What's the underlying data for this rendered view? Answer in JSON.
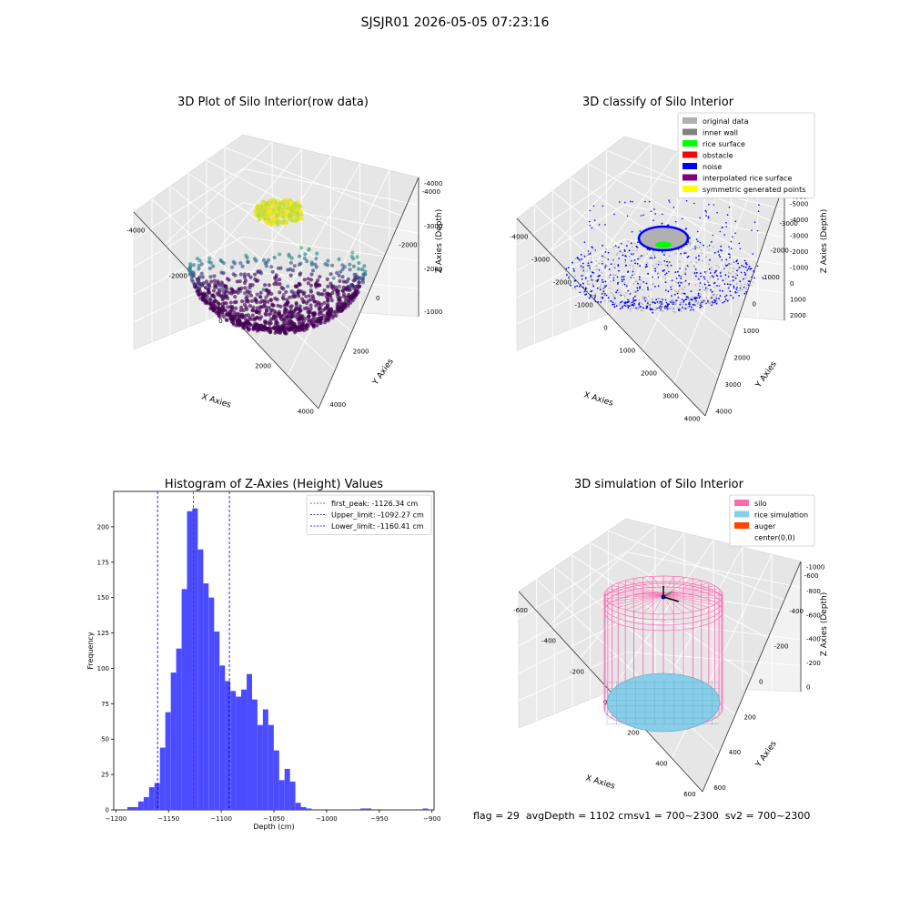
{
  "suptitle": "SJSJR01 2026-05-05 07:23:16",
  "status": {
    "flag": "flag = 29",
    "avg_depth": "avgDepth = 1102 cm",
    "sv1": "sv1 = 700~2300",
    "sv2": "sv2 = 700~2300"
  },
  "colors": {
    "hist_bar": "#4b4bff",
    "first_peak_line": "#ff0000",
    "limit_line": "#0000cc",
    "original_data": "#b0b0b0",
    "inner_wall": "#808080",
    "rice_surface": "#00ff00",
    "obstacle": "#ff0000",
    "noise": "#0000ff",
    "interpolated_rice_surface": "#800080",
    "symmetric_generated_points": "#ffff00",
    "silo": "#ff69b4",
    "rice_simulation": "#87ceeb",
    "auger": "#ff4500",
    "viridis_low": "#440154",
    "viridis_mid": "#21918c",
    "viridis_high": "#fde725"
  },
  "chart_data": [
    {
      "type": "scatter",
      "projection": "3d",
      "title": "3D Plot of Silo Interior(row data)",
      "xlabel": "X Axies",
      "ylabel": "Y Axies",
      "zlabel": "Z Axies (Depth)",
      "x_ticks": [
        "-4000",
        "-2000",
        "0",
        "2000",
        "4000"
      ],
      "y_ticks": [
        "4000",
        "2000",
        "0",
        "-2000",
        "-4000"
      ],
      "z_ticks": [
        "-1000",
        "-2000",
        "-3000",
        "-4000"
      ],
      "colormap": "viridis"
    },
    {
      "type": "scatter",
      "projection": "3d",
      "title": "3D classify of Silo Interior",
      "xlabel": "X Axies",
      "ylabel": "Y Axies",
      "zlabel": "Z Axies (Depth)",
      "x_ticks": [
        "-4000",
        "-3000",
        "-2000",
        "-1000",
        "0",
        "1000",
        "2000",
        "3000",
        "4000"
      ],
      "y_ticks": [
        "4000",
        "3000",
        "2000",
        "1000",
        "0",
        "-1000",
        "-2000",
        "-3000",
        "-4000"
      ],
      "z_ticks": [
        "2000",
        "1000",
        "0",
        "-1000",
        "-2000",
        "-3000",
        "-4000",
        "-5000",
        "-6000"
      ],
      "legend": [
        "original data",
        "inner wall",
        "rice surface",
        "obstacle",
        "noise",
        "interpolated rice surface",
        "symmetric generated points"
      ],
      "legend_placement": "top-right"
    },
    {
      "type": "bar",
      "title": "Histogram of Z-Axies (Height) Values",
      "xlabel": "Depth (cm)",
      "ylabel": "Frequency",
      "xlim": [
        -1202,
        -898
      ],
      "ylim": [
        0,
        225
      ],
      "x_ticks": [
        -1200,
        -1150,
        -1100,
        -1050,
        -1000,
        -950,
        -900
      ],
      "y_ticks": [
        0,
        25,
        50,
        75,
        100,
        125,
        150,
        175,
        200
      ],
      "bin_width": 5.14,
      "bins": [
        [
          -1186.5,
          2
        ],
        [
          -1181.3,
          2
        ],
        [
          -1176.2,
          6
        ],
        [
          -1171.0,
          9
        ],
        [
          -1165.9,
          16
        ],
        [
          -1160.8,
          19
        ],
        [
          -1155.6,
          44
        ],
        [
          -1150.5,
          69
        ],
        [
          -1145.3,
          97
        ],
        [
          -1140.2,
          114
        ],
        [
          -1135.0,
          156
        ],
        [
          -1129.9,
          211
        ],
        [
          -1124.8,
          213
        ],
        [
          -1119.6,
          184
        ],
        [
          -1114.5,
          160
        ],
        [
          -1109.3,
          150
        ],
        [
          -1104.2,
          126
        ],
        [
          -1099.0,
          102
        ],
        [
          -1093.9,
          91
        ],
        [
          -1088.7,
          84
        ],
        [
          -1083.6,
          80
        ],
        [
          -1078.5,
          85
        ],
        [
          -1073.3,
          96
        ],
        [
          -1068.2,
          78
        ],
        [
          -1063.0,
          60
        ],
        [
          -1057.9,
          71
        ],
        [
          -1052.7,
          60
        ],
        [
          -1047.6,
          42
        ],
        [
          -1042.5,
          21
        ],
        [
          -1037.3,
          29
        ],
        [
          -1032.2,
          20
        ],
        [
          -1027.0,
          5
        ],
        [
          -1021.9,
          2
        ],
        [
          -1016.7,
          1
        ],
        [
          -965.3,
          1
        ],
        [
          -960.1,
          1
        ],
        [
          -906.2,
          1
        ]
      ],
      "vlines": [
        {
          "label": "first_peak: -1126.34 cm",
          "x": -1126.34,
          "color": "red"
        },
        {
          "label": "Upper_limit: -1092.27 cm",
          "x": -1092.27,
          "color": "blue"
        },
        {
          "label": "Lower_limit: -1160.41 cm",
          "x": -1160.41,
          "color": "blue"
        }
      ],
      "legend_placement": "top-right"
    },
    {
      "type": "line",
      "projection": "3d",
      "title": "3D simulation of Silo Interior",
      "xlabel": "X Axies",
      "ylabel": "Y Axies",
      "zlabel": "Z Axies (Depth)",
      "x_ticks": [
        "-600",
        "-400",
        "-200",
        "0",
        "200",
        "400",
        "600"
      ],
      "y_ticks": [
        "600",
        "400",
        "200",
        "0",
        "-200",
        "-400",
        "-600"
      ],
      "z_ticks": [
        "0",
        "-200",
        "-400",
        "-600",
        "-800",
        "-1000"
      ],
      "legend": [
        "silo",
        "rice simulation",
        "auger",
        "center(0,0)"
      ],
      "legend_placement": "top-right"
    }
  ]
}
